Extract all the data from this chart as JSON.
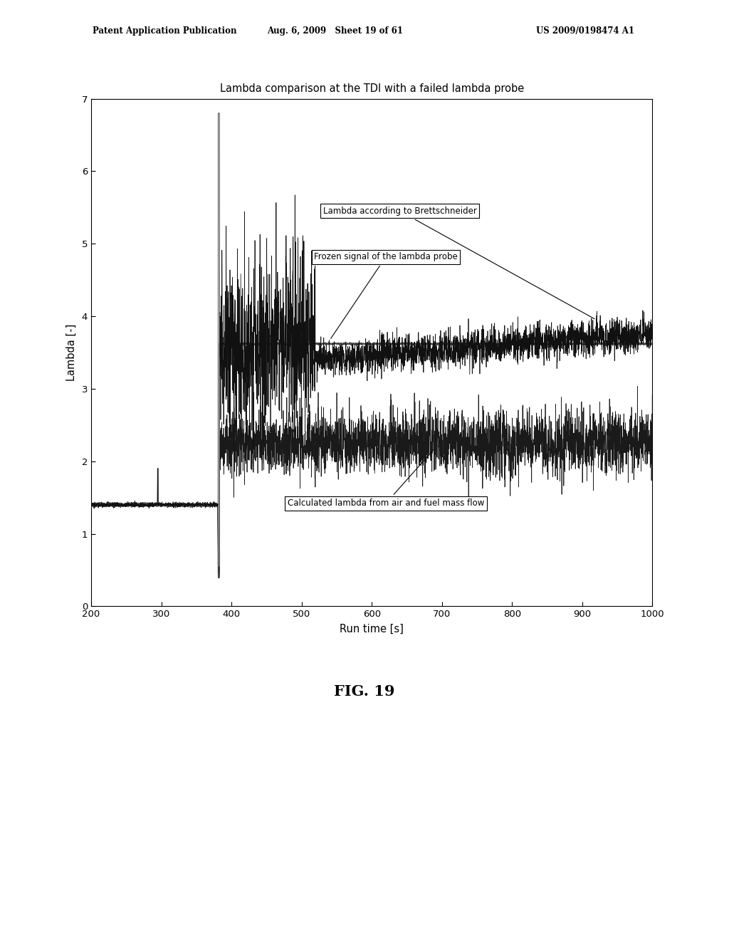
{
  "title": "Lambda comparison at the TDI with a failed lambda probe",
  "xlabel": "Run time [s]",
  "ylabel": "Lambda [-]",
  "xlim": [
    200,
    1000
  ],
  "ylim": [
    0,
    7
  ],
  "yticks": [
    0,
    1,
    2,
    3,
    4,
    5,
    6,
    7
  ],
  "xticks": [
    200,
    300,
    400,
    500,
    600,
    700,
    800,
    900,
    1000
  ],
  "background_color": "#ffffff",
  "fig_caption": "FIG. 19",
  "header_left": "Patent Application Publication",
  "header_center": "Aug. 6, 2009   Sheet 19 of 61",
  "header_right": "US 2009/0198474 A1",
  "label_brettschneider": "Lambda according to Brettschneider",
  "label_frozen": "Frozen signal of the lambda probe",
  "label_calculated": "Calculated lambda from air and fuel mass flow",
  "seed": 42
}
